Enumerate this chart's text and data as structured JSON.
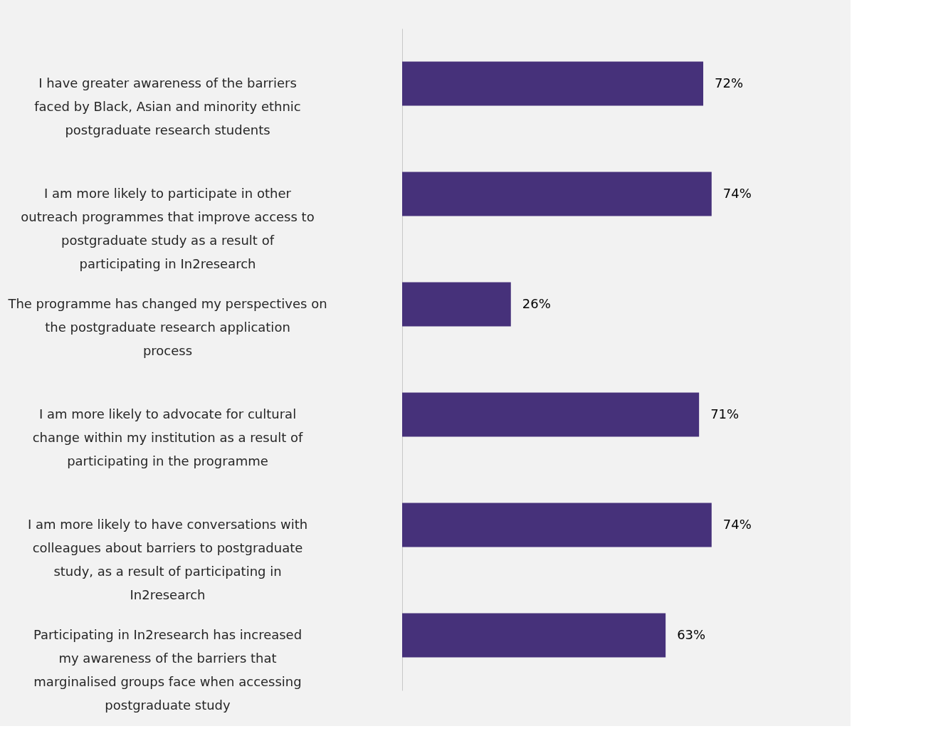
{
  "chart_data": {
    "type": "bar",
    "orientation": "horizontal",
    "categories": [
      "I have greater awareness of the barriers faced by Black, Asian and minority ethnic postgraduate research students",
      "I am more likely to participate in other outreach programmes that improve access to postgraduate study as a result of participating in In2research",
      "The programme has changed my perspectives on the postgraduate research application process",
      "I am more likely to advocate for cultural change within my institution as a result of participating in the programme",
      "I am more likely to have conversations with colleagues about barriers to postgraduate study, as a result of participating in In2research",
      "Participating in In2research has increased my awareness of the barriers that marginalised groups face when accessing postgraduate study"
    ],
    "values": [
      72,
      74,
      26,
      71,
      74,
      63
    ],
    "value_labels": [
      "72%",
      "74%",
      "26%",
      "71%",
      "74%",
      "63%"
    ],
    "color": "#46317a",
    "grid": false
  }
}
